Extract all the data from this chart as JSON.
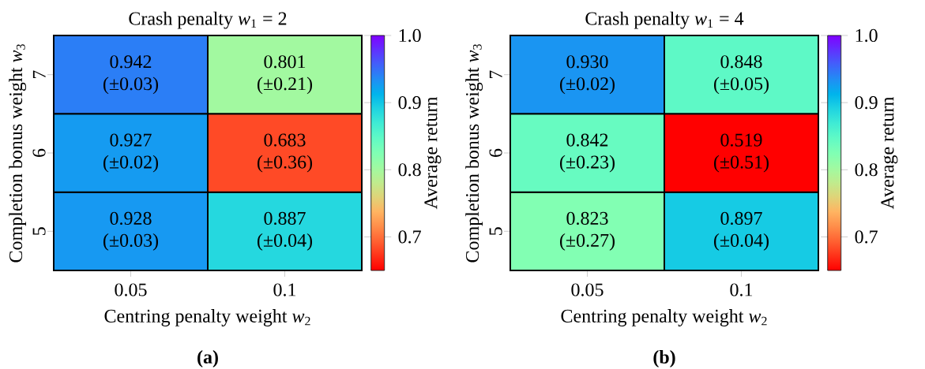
{
  "chart_data": [
    {
      "type": "heatmap",
      "title": "Crash penalty *w*$_{1}$ = 2",
      "xlabel": "Centring penalty weight *w*$_{2}$",
      "ylabel": "Completion bonus weight *w*$_{3}$",
      "clabel": "Average return",
      "categories": [
        "0.05",
        "0.1"
      ],
      "y_categories": [
        "7",
        "6",
        "5"
      ],
      "cells": [
        [
          0.942,
          0.801
        ],
        [
          0.927,
          0.683
        ],
        [
          0.928,
          0.887
        ]
      ],
      "cell_labels": [
        [
          "0.942 (±0.03)",
          "0.801 (±0.21)"
        ],
        [
          "0.927 (±0.02)",
          "0.683 (±0.36)"
        ],
        [
          "0.928 (±0.03)",
          "0.887 (±0.04)"
        ]
      ],
      "clim": [
        0.65,
        1.0
      ],
      "cticks": [
        0.7,
        0.8,
        0.9,
        {
          "value": 1.0,
          "label": "1.0"
        }
      ],
      "annotations": [
        "(a)"
      ]
    },
    {
      "type": "heatmap",
      "title": "Crash penalty *w*$_{1}$ = 4",
      "xlabel": "Centring penalty weight *w*$_{2}$",
      "ylabel": "Completion bonus weight *w*$_{3}$",
      "clabel": "Average return",
      "categories": [
        "0.05",
        "0.1"
      ],
      "y_categories": [
        "7",
        "6",
        "5"
      ],
      "cells": [
        [
          0.93,
          0.848
        ],
        [
          0.842,
          0.519
        ],
        [
          0.823,
          0.897
        ]
      ],
      "cell_labels": [
        [
          "0.930 (±0.02)",
          "0.848 (±0.05)"
        ],
        [
          "0.842 (±0.23)",
          "0.519 (±0.51)"
        ],
        [
          "0.823 (±0.27)",
          "0.897 (±0.04)"
        ]
      ],
      "clim": [
        0.65,
        1.0
      ],
      "cticks": [
        0.7,
        0.8,
        0.9,
        {
          "value": 1.0,
          "label": "1.0"
        }
      ],
      "annotations": [
        "(b)"
      ]
    }
  ]
}
